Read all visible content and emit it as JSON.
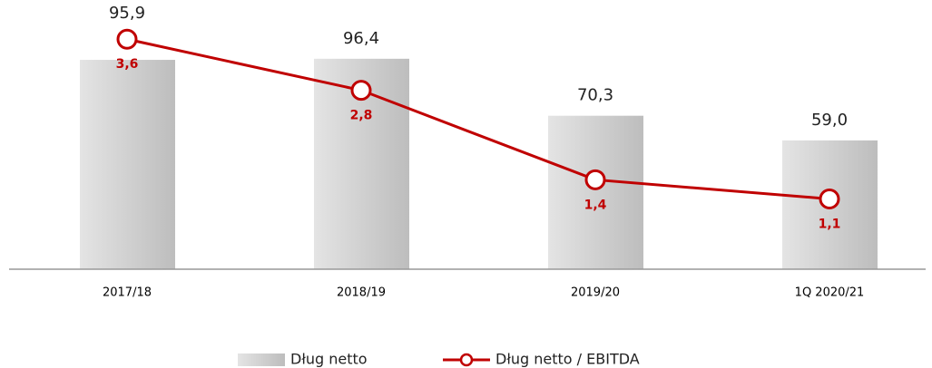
{
  "chart_data": {
    "type": "bar-line",
    "categories": [
      "2017/18",
      "2018/19",
      "2019/20",
      "1Q 2020/21"
    ],
    "series": [
      {
        "name": "Dług netto",
        "type": "bar",
        "color": "#c8c8c8",
        "values": [
          95.9,
          96.4,
          70.3,
          59.0
        ],
        "value_labels": [
          "95,9",
          "96,4",
          "70,3",
          "59,0"
        ]
      },
      {
        "name": "Dług netto / EBITDA",
        "type": "line",
        "axis": "y2",
        "color": "#c00000",
        "values": [
          3.6,
          2.8,
          1.4,
          1.1
        ],
        "value_labels": [
          "3,6",
          "2,8",
          "1,4",
          "1,1"
        ]
      }
    ],
    "ylim": [
      0,
      120
    ],
    "y2lim": [
      0,
      4.1
    ],
    "legend": "bottom"
  }
}
